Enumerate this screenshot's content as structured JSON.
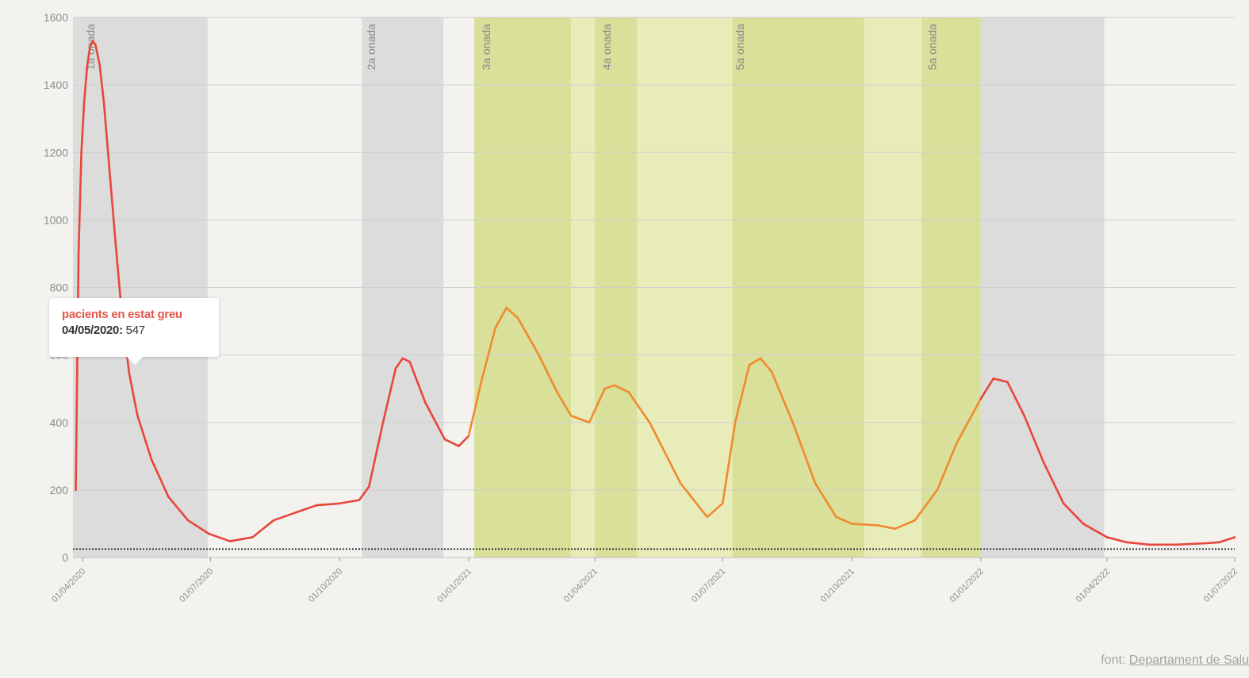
{
  "chart_data": {
    "type": "line",
    "series": [
      {
        "name": "pacients en estat greu",
        "color": "#e8463a",
        "points": [
          [
            "2020-03-27",
            200
          ],
          [
            "2020-03-29",
            900
          ],
          [
            "2020-03-31",
            1200
          ],
          [
            "2020-04-02",
            1350
          ],
          [
            "2020-04-04",
            1450
          ],
          [
            "2020-04-06",
            1510
          ],
          [
            "2020-04-08",
            1530
          ],
          [
            "2020-04-10",
            1520
          ],
          [
            "2020-04-13",
            1460
          ],
          [
            "2020-04-16",
            1350
          ],
          [
            "2020-04-20",
            1150
          ],
          [
            "2020-04-24",
            950
          ],
          [
            "2020-04-28",
            760
          ],
          [
            "2020-05-04",
            547
          ],
          [
            "2020-05-10",
            420
          ],
          [
            "2020-05-20",
            290
          ],
          [
            "2020-06-01",
            180
          ],
          [
            "2020-06-15",
            110
          ],
          [
            "2020-06-30",
            70
          ],
          [
            "2020-07-15",
            48
          ],
          [
            "2020-07-31",
            60
          ],
          [
            "2020-08-15",
            110
          ],
          [
            "2020-09-01",
            135
          ],
          [
            "2020-09-15",
            155
          ],
          [
            "2020-10-01",
            160
          ],
          [
            "2020-10-15",
            170
          ],
          [
            "2020-10-22",
            210
          ],
          [
            "2020-11-01",
            400
          ],
          [
            "2020-11-10",
            560
          ],
          [
            "2020-11-15",
            590
          ],
          [
            "2020-11-20",
            580
          ],
          [
            "2020-12-01",
            460
          ],
          [
            "2020-12-15",
            350
          ],
          [
            "2020-12-25",
            330
          ],
          [
            "2021-01-01",
            360
          ],
          [
            "2021-01-10",
            520
          ],
          [
            "2021-01-20",
            680
          ],
          [
            "2021-01-28",
            740
          ],
          [
            "2021-02-05",
            710
          ],
          [
            "2021-02-20",
            600
          ],
          [
            "2021-03-05",
            490
          ],
          [
            "2021-03-15",
            420
          ],
          [
            "2021-03-28",
            400
          ],
          [
            "2021-04-08",
            500
          ],
          [
            "2021-04-15",
            510
          ],
          [
            "2021-04-25",
            490
          ],
          [
            "2021-05-10",
            400
          ],
          [
            "2021-06-01",
            220
          ],
          [
            "2021-06-20",
            120
          ],
          [
            "2021-07-01",
            160
          ],
          [
            "2021-07-10",
            400
          ],
          [
            "2021-07-20",
            570
          ],
          [
            "2021-07-28",
            590
          ],
          [
            "2021-08-05",
            550
          ],
          [
            "2021-08-20",
            400
          ],
          [
            "2021-09-05",
            220
          ],
          [
            "2021-09-20",
            120
          ],
          [
            "2021-10-01",
            100
          ],
          [
            "2021-10-20",
            95
          ],
          [
            "2021-11-01",
            85
          ],
          [
            "2021-11-15",
            110
          ],
          [
            "2021-12-01",
            200
          ],
          [
            "2021-12-15",
            340
          ],
          [
            "2022-01-01",
            470
          ],
          [
            "2022-01-10",
            530
          ],
          [
            "2022-01-20",
            520
          ],
          [
            "2022-02-01",
            420
          ],
          [
            "2022-02-15",
            280
          ],
          [
            "2022-03-01",
            160
          ],
          [
            "2022-03-15",
            100
          ],
          [
            "2022-04-01",
            60
          ],
          [
            "2022-04-15",
            45
          ],
          [
            "2022-05-01",
            38
          ],
          [
            "2022-05-20",
            38
          ],
          [
            "2022-06-10",
            42
          ],
          [
            "2022-06-20",
            45
          ],
          [
            "2022-07-01",
            60
          ]
        ]
      }
    ],
    "reference_line": {
      "y": 25,
      "style": "dotted",
      "color": "#333333"
    },
    "xlim": [
      "2020-03-25",
      "2022-07-01"
    ],
    "ylim": [
      0,
      1600
    ],
    "yticks": [
      0,
      200,
      400,
      600,
      800,
      1000,
      1200,
      1400,
      1600
    ],
    "xticks": [
      {
        "date": "2020-04-01",
        "label": "01/04/2020"
      },
      {
        "date": "2020-07-01",
        "label": "01/07/2020"
      },
      {
        "date": "2020-10-01",
        "label": "01/10/2020"
      },
      {
        "date": "2021-01-01",
        "label": "01/01/2021"
      },
      {
        "date": "2021-04-01",
        "label": "01/04/2021"
      },
      {
        "date": "2021-07-01",
        "label": "01/07/2021"
      },
      {
        "date": "2021-10-01",
        "label": "01/10/2021"
      },
      {
        "date": "2022-01-01",
        "label": "01/01/2022"
      },
      {
        "date": "2022-04-01",
        "label": "01/04/2022"
      },
      {
        "date": "2022-07-01",
        "label": "01/07/2022"
      }
    ],
    "bands": [
      {
        "from": "2020-03-25",
        "to": "2020-06-29",
        "color": "#dcdcdc"
      },
      {
        "from": "2020-10-17",
        "to": "2020-12-14",
        "color": "#dcdcdc"
      },
      {
        "from": "2021-01-05",
        "to": "2021-03-15",
        "color": "#d8e09a"
      },
      {
        "from": "2021-03-15",
        "to": "2021-04-01",
        "color": "#e8ecb8"
      },
      {
        "from": "2021-04-01",
        "to": "2021-05-01",
        "color": "#d8e09a"
      },
      {
        "from": "2021-05-01",
        "to": "2021-07-08",
        "color": "#e8ecb8"
      },
      {
        "from": "2021-07-08",
        "to": "2021-10-10",
        "color": "#d8e09a"
      },
      {
        "from": "2021-10-10",
        "to": "2021-11-20",
        "color": "#e8ecb8"
      },
      {
        "from": "2021-11-20",
        "to": "2022-01-01",
        "color": "#d8e09a"
      },
      {
        "from": "2022-01-01",
        "to": "2022-03-30",
        "color": "#dcdcdc"
      }
    ],
    "wave_labels": [
      {
        "date": "2020-04-07",
        "label": "1a onada"
      },
      {
        "date": "2020-10-24",
        "label": "2a onada"
      },
      {
        "date": "2021-01-14",
        "label": "3a onada"
      },
      {
        "date": "2021-04-10",
        "label": "4a onada"
      },
      {
        "date": "2021-07-14",
        "label": "5a onada"
      },
      {
        "date": "2021-11-28",
        "label": "5a onada"
      }
    ],
    "grid": true
  },
  "tooltip": {
    "series_label": "pacients en estat greu",
    "date": "04/05/2020:",
    "value": "547"
  },
  "source": {
    "prefix": "font: ",
    "link_text": "Departament de Salu"
  }
}
